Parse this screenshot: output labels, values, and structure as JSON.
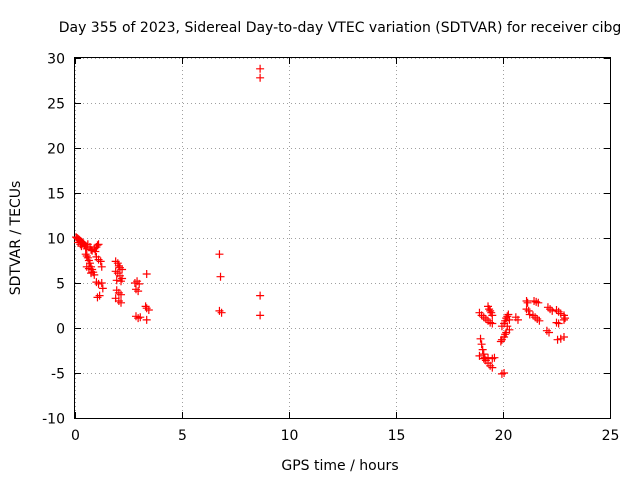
{
  "chart_data": {
    "type": "scatter",
    "title": "Day 355 of 2023, Sidereal Day-to-day VTEC variation (SDTVAR) for receiver cibg",
    "xlabel": "GPS time / hours",
    "ylabel": "SDTVAR / TECUs",
    "xlim": [
      0,
      25
    ],
    "ylim": [
      -10,
      30
    ],
    "xticks": [
      "0",
      "5",
      "10",
      "15",
      "20",
      "25"
    ],
    "yticks": [
      "-10",
      "-5",
      "0",
      "5",
      "10",
      "15",
      "20",
      "25",
      "30"
    ],
    "grid": true,
    "marker": "+",
    "color": "#ff0000",
    "series": [
      {
        "name": "SDTVAR",
        "points": [
          [
            0.05,
            10.1
          ],
          [
            0.1,
            10.0
          ],
          [
            0.15,
            9.9
          ],
          [
            0.2,
            9.8
          ],
          [
            0.25,
            9.7
          ],
          [
            0.3,
            9.6
          ],
          [
            0.35,
            9.5
          ],
          [
            0.4,
            9.4
          ],
          [
            0.15,
            9.5
          ],
          [
            0.25,
            9.3
          ],
          [
            0.3,
            9.1
          ],
          [
            0.45,
            9.2
          ],
          [
            0.5,
            9.0
          ],
          [
            0.55,
            8.8
          ],
          [
            0.5,
            8.2
          ],
          [
            0.55,
            8.0
          ],
          [
            0.6,
            7.8
          ],
          [
            0.65,
            7.5
          ],
          [
            0.7,
            7.2
          ],
          [
            0.75,
            6.8
          ],
          [
            0.8,
            6.5
          ],
          [
            0.85,
            6.2
          ],
          [
            0.9,
            5.9
          ],
          [
            0.6,
            9.3
          ],
          [
            0.7,
            9.0
          ],
          [
            0.75,
            8.7
          ],
          [
            0.8,
            8.6
          ],
          [
            0.9,
            8.8
          ],
          [
            0.95,
            8.5
          ],
          [
            1.0,
            9.0
          ],
          [
            1.05,
            9.2
          ],
          [
            1.1,
            9.3
          ],
          [
            0.55,
            6.8
          ],
          [
            0.65,
            6.6
          ],
          [
            0.75,
            6.1
          ],
          [
            1.0,
            7.9
          ],
          [
            1.1,
            7.6
          ],
          [
            1.2,
            7.4
          ],
          [
            1.25,
            6.8
          ],
          [
            1.0,
            5.1
          ],
          [
            1.1,
            4.9
          ],
          [
            1.25,
            5.0
          ],
          [
            1.3,
            4.4
          ],
          [
            1.05,
            3.4
          ],
          [
            1.15,
            3.6
          ],
          [
            1.9,
            7.4
          ],
          [
            2.0,
            7.2
          ],
          [
            2.05,
            6.9
          ],
          [
            2.1,
            6.7
          ],
          [
            2.2,
            6.5
          ],
          [
            1.9,
            6.3
          ],
          [
            2.0,
            6.1
          ],
          [
            2.1,
            5.8
          ],
          [
            2.2,
            5.5
          ],
          [
            1.95,
            5.3
          ],
          [
            2.15,
            5.2
          ],
          [
            1.95,
            4.2
          ],
          [
            2.05,
            3.9
          ],
          [
            2.15,
            3.7
          ],
          [
            1.9,
            3.3
          ],
          [
            2.05,
            3.0
          ],
          [
            2.15,
            2.8
          ],
          [
            2.8,
            5.0
          ],
          [
            2.9,
            5.2
          ],
          [
            3.0,
            4.9
          ],
          [
            2.85,
            4.3
          ],
          [
            2.95,
            4.1
          ],
          [
            2.85,
            1.3
          ],
          [
            2.95,
            1.1
          ],
          [
            3.05,
            1.2
          ],
          [
            3.35,
            6.0
          ],
          [
            3.3,
            2.4
          ],
          [
            3.35,
            2.2
          ],
          [
            3.45,
            2.0
          ],
          [
            3.35,
            0.9
          ],
          [
            6.75,
            8.2
          ],
          [
            6.8,
            5.7
          ],
          [
            6.75,
            1.9
          ],
          [
            6.85,
            1.7
          ],
          [
            8.65,
            28.8
          ],
          [
            8.65,
            27.8
          ],
          [
            8.65,
            3.6
          ],
          [
            8.65,
            1.4
          ],
          [
            18.9,
            1.7
          ],
          [
            19.0,
            1.4
          ],
          [
            19.1,
            1.2
          ],
          [
            19.2,
            1.0
          ],
          [
            19.3,
            0.8
          ],
          [
            19.4,
            0.6
          ],
          [
            19.5,
            0.5
          ],
          [
            19.3,
            2.4
          ],
          [
            19.35,
            2.1
          ],
          [
            19.4,
            1.9
          ],
          [
            19.45,
            1.7
          ],
          [
            19.5,
            1.4
          ],
          [
            18.95,
            -1.2
          ],
          [
            19.0,
            -1.8
          ],
          [
            19.05,
            -2.4
          ],
          [
            19.1,
            -2.9
          ],
          [
            19.15,
            -3.3
          ],
          [
            19.2,
            -3.6
          ],
          [
            19.3,
            -3.9
          ],
          [
            19.4,
            -4.2
          ],
          [
            19.5,
            -4.4
          ],
          [
            18.9,
            -3.1
          ],
          [
            19.1,
            -3.4
          ],
          [
            19.3,
            -3.3
          ],
          [
            19.5,
            -3.4
          ],
          [
            19.6,
            -3.3
          ],
          [
            19.95,
            -5.1
          ],
          [
            20.05,
            -5.0
          ],
          [
            19.9,
            -1.5
          ],
          [
            19.95,
            -1.3
          ],
          [
            20.05,
            -1.0
          ],
          [
            20.1,
            -0.7
          ],
          [
            20.15,
            -0.5
          ],
          [
            19.95,
            0.2
          ],
          [
            20.05,
            0.5
          ],
          [
            20.1,
            0.8
          ],
          [
            20.15,
            1.1
          ],
          [
            20.2,
            1.3
          ],
          [
            20.25,
            1.5
          ],
          [
            20.2,
            0.2
          ],
          [
            20.3,
            -0.2
          ],
          [
            20.3,
            0.9
          ],
          [
            20.6,
            1.2
          ],
          [
            20.7,
            0.9
          ],
          [
            21.1,
            3.0
          ],
          [
            21.15,
            2.8
          ],
          [
            21.1,
            2.1
          ],
          [
            21.2,
            1.9
          ],
          [
            21.25,
            1.5
          ],
          [
            21.45,
            3.0
          ],
          [
            21.55,
            2.9
          ],
          [
            21.65,
            2.8
          ],
          [
            21.4,
            1.4
          ],
          [
            21.5,
            1.2
          ],
          [
            21.6,
            1.0
          ],
          [
            21.7,
            0.8
          ],
          [
            22.1,
            2.3
          ],
          [
            22.2,
            2.1
          ],
          [
            22.3,
            1.9
          ],
          [
            22.05,
            -0.3
          ],
          [
            22.15,
            -0.5
          ],
          [
            22.5,
            2.0
          ],
          [
            22.6,
            1.8
          ],
          [
            22.7,
            1.6
          ],
          [
            22.5,
            0.6
          ],
          [
            22.6,
            0.5
          ],
          [
            22.55,
            -1.3
          ],
          [
            22.7,
            -1.2
          ],
          [
            22.85,
            -1.0
          ],
          [
            22.85,
            1.4
          ],
          [
            22.9,
            1.1
          ],
          [
            22.85,
            0.9
          ]
        ]
      }
    ]
  }
}
